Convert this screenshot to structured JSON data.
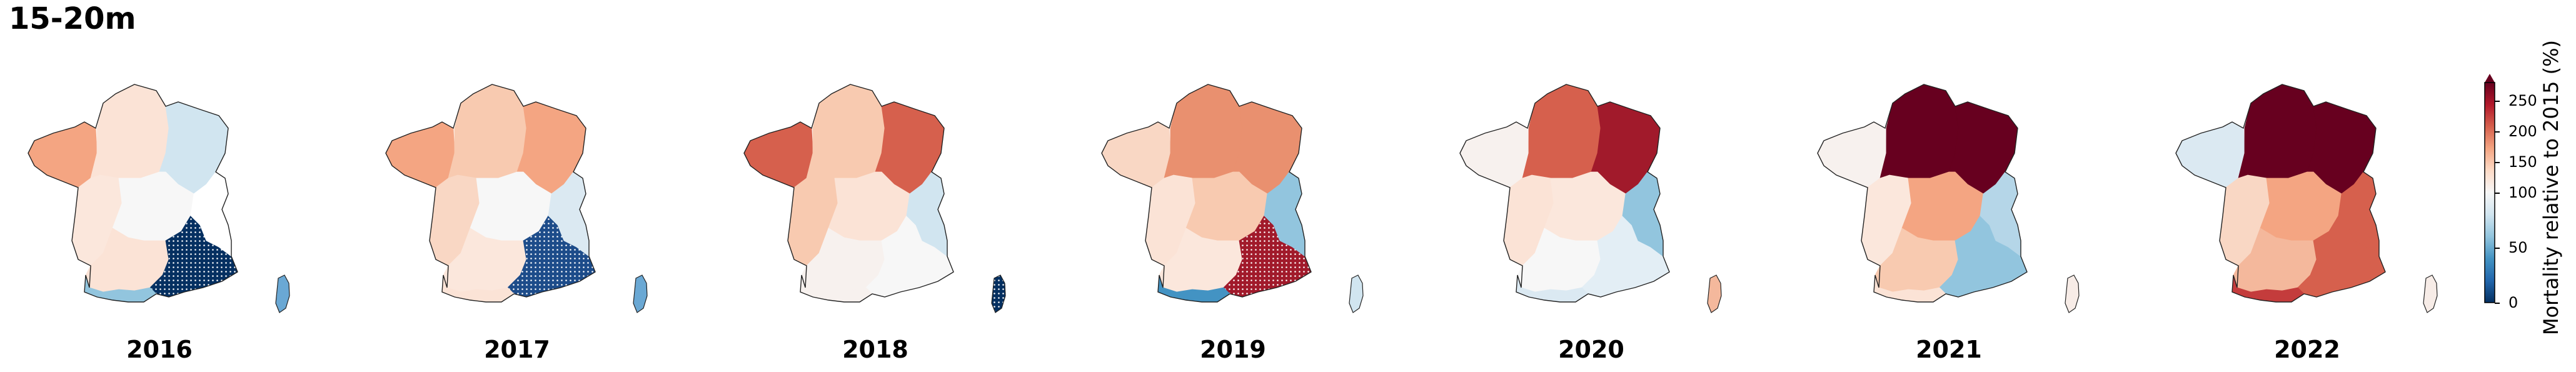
{
  "figure": {
    "title": "15-20m",
    "panels": [
      {
        "year": "2016",
        "regions": {
          "bretagne": "#f4a582",
          "nord": "#fbe3d6",
          "nordest": "#d1e5f0",
          "ouest": "#fbe7dc",
          "centre": "#f7f7f7",
          "sudouest": "#fbe3d6",
          "sudest": "#053061",
          "pyrenees": "#92c5de",
          "alpes": "#ffffff",
          "corse": "#6aa8d4"
        },
        "hatched": [
          "sudest"
        ]
      },
      {
        "year": "2017",
        "regions": {
          "bretagne": "#f4a582",
          "nord": "#f8cab0",
          "nordest": "#f4a582",
          "ouest": "#f9d7c4",
          "centre": "#f7f7f7",
          "sudouest": "#fbe7dc",
          "sudest": "#1d4c8a",
          "pyrenees": "#fbe3d6",
          "alpes": "#dbe9f2",
          "corse": "#6aa8d4"
        },
        "hatched": [
          "sudest"
        ]
      },
      {
        "year": "2018",
        "regions": {
          "bretagne": "#d6604d",
          "nord": "#f8cab0",
          "nordest": "#d6604d",
          "ouest": "#f8cab0",
          "centre": "#fbe3d6",
          "sudouest": "#f7f1ee",
          "sudest": "#f7f7f7",
          "pyrenees": "#f7f1ee",
          "alpes": "#d1e5f0",
          "corse": "#053061"
        },
        "hatched": [
          "corse"
        ]
      },
      {
        "year": "2019",
        "regions": {
          "bretagne": "#f9d7c4",
          "nord": "#e9906f",
          "nordest": "#e9906f",
          "ouest": "#fbe3d6",
          "centre": "#f8cab0",
          "sudouest": "#fbe7dc",
          "sudest": "#a11a2b",
          "pyrenees": "#4393c3",
          "alpes": "#92c5de",
          "corse": "#d1e5f0"
        },
        "hatched": [
          "sudest"
        ]
      },
      {
        "year": "2020",
        "regions": {
          "bretagne": "#f7f1ee",
          "nord": "#d6604d",
          "nordest": "#a11a2b",
          "ouest": "#fbe3d6",
          "centre": "#fbe7dc",
          "sudouest": "#f7f7f7",
          "sudest": "#e3eef5",
          "pyrenees": "#dbe9f2",
          "alpes": "#92c5de",
          "corse": "#f4b89c"
        },
        "hatched": []
      },
      {
        "year": "2021",
        "regions": {
          "bretagne": "#f7f1ee",
          "nord": "#67001f",
          "nordest": "#67001f",
          "ouest": "#fbe7dc",
          "centre": "#f4a582",
          "sudouest": "#f8cab0",
          "sudest": "#92c5de",
          "pyrenees": "#fbe3d6",
          "alpes": "#b5d6e8",
          "corse": "#f7ece7"
        },
        "hatched": []
      },
      {
        "year": "2022",
        "regions": {
          "bretagne": "#dbe9f2",
          "nord": "#67001f",
          "nordest": "#67001f",
          "ouest": "#f9d7c4",
          "centre": "#f4a582",
          "sudouest": "#f4b89c",
          "sudest": "#d6604d",
          "pyrenees": "#c43c3c",
          "alpes": "#d6604d",
          "corse": "#f7ece7"
        },
        "hatched": []
      }
    ]
  },
  "colorbar": {
    "label": "Mortality relative to 2015 (%)",
    "ticks": [
      "250",
      "200",
      "150",
      "100",
      "50",
      "0"
    ],
    "tick_values": [
      250,
      200,
      150,
      100,
      50,
      0
    ],
    "colors": [
      "#67001f",
      "#b2182b",
      "#d6604d",
      "#f4a582",
      "#fddbc7",
      "#f7f7f7",
      "#d1e5f0",
      "#92c5de",
      "#4393c3",
      "#2166ac",
      "#053061"
    ],
    "extend": "max"
  }
}
